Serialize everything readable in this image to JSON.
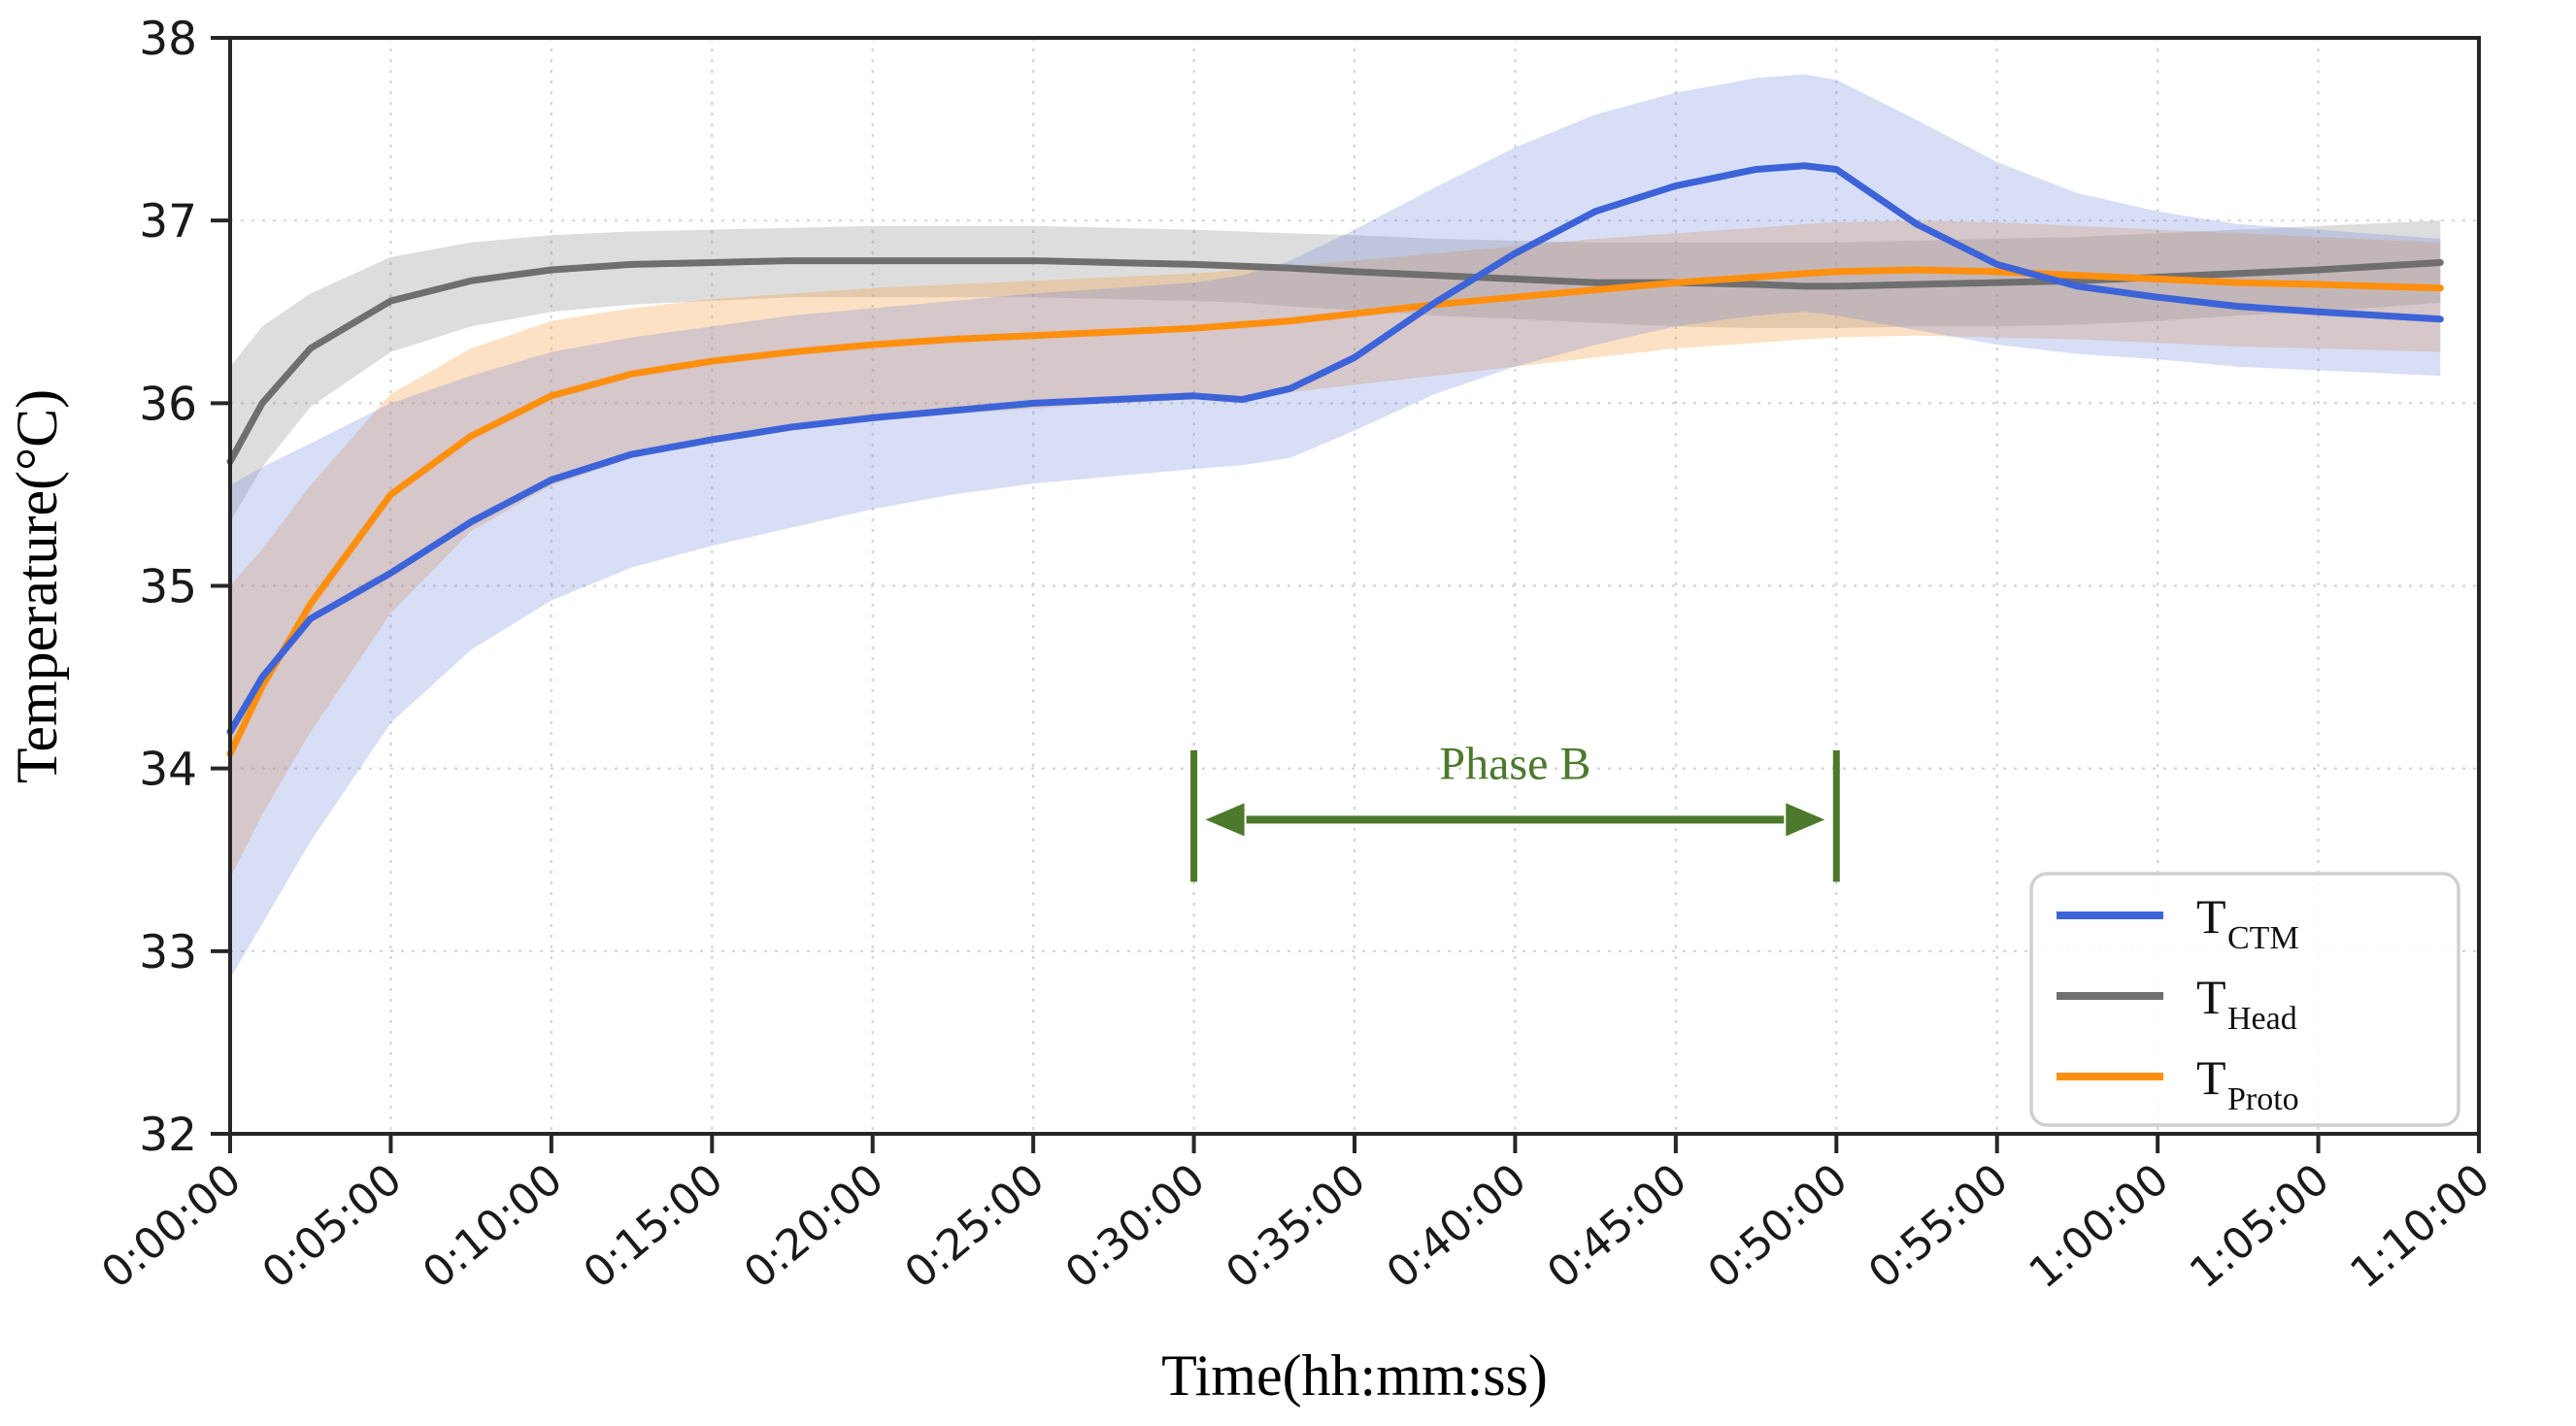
{
  "chart_data": {
    "type": "line",
    "xlabel": "Time(hh:mm:ss)",
    "ylabel": "Temperature(°C)",
    "ylim": [
      32,
      38
    ],
    "yticks": [
      38,
      37,
      36,
      35,
      34,
      33,
      32
    ],
    "x_axis_minutes_range": [
      0,
      70
    ],
    "xtick_minutes": [
      0,
      5,
      10,
      15,
      20,
      25,
      30,
      35,
      40,
      45,
      50,
      55,
      60,
      65,
      70
    ],
    "xtick_labels": [
      "0:00:00",
      "0:05:00",
      "0:10:00",
      "0:15:00",
      "0:20:00",
      "0:25:00",
      "0:30:00",
      "0:35:00",
      "0:40:00",
      "0:45:00",
      "0:50:00",
      "0:55:00",
      "1:00:00",
      "1:05:00",
      "1:10:00"
    ],
    "grid": "dotted",
    "legend_position": "lower right",
    "x_minutes": [
      0,
      1,
      2.5,
      5,
      7.5,
      10,
      12.5,
      15,
      17.5,
      20,
      22.5,
      25,
      27.5,
      30,
      31.5,
      33,
      35,
      37.5,
      40,
      42.5,
      45,
      47.5,
      49,
      50,
      52.5,
      55,
      57.5,
      60,
      62.5,
      65,
      68.8
    ],
    "series": [
      {
        "name": "T_Head",
        "legend_main": "T",
        "legend_sub": "Head",
        "color": "#6f6f6f",
        "band_color": "rgba(130,130,130,0.27)",
        "values": [
          35.68,
          36.0,
          36.3,
          36.56,
          36.67,
          36.73,
          36.76,
          36.77,
          36.78,
          36.78,
          36.78,
          36.78,
          36.77,
          36.76,
          36.75,
          36.74,
          36.72,
          36.7,
          36.68,
          36.66,
          36.66,
          36.65,
          36.64,
          36.64,
          36.65,
          36.66,
          36.67,
          36.69,
          36.71,
          36.73,
          36.77
        ],
        "band_lower": [
          35.35,
          35.65,
          35.98,
          36.28,
          36.42,
          36.5,
          36.54,
          36.56,
          36.58,
          36.58,
          36.58,
          36.58,
          36.57,
          36.56,
          36.55,
          36.53,
          36.51,
          36.48,
          36.46,
          36.44,
          36.42,
          36.41,
          36.41,
          36.41,
          36.42,
          36.42,
          36.43,
          36.45,
          36.48,
          36.5,
          36.55
        ],
        "band_upper": [
          36.2,
          36.42,
          36.6,
          36.8,
          36.88,
          36.92,
          36.94,
          36.95,
          36.96,
          36.97,
          36.97,
          36.97,
          36.96,
          36.95,
          36.94,
          36.93,
          36.92,
          36.9,
          36.89,
          36.88,
          36.88,
          36.88,
          36.88,
          36.88,
          36.89,
          36.9,
          36.91,
          36.93,
          36.95,
          36.97,
          37.0
        ]
      },
      {
        "name": "T_Proto",
        "legend_main": "T",
        "legend_sub": "Proto",
        "color": "#ff8f0e",
        "band_color": "rgba(244,156,60,0.30)",
        "values": [
          34.08,
          34.45,
          34.9,
          35.5,
          35.82,
          36.04,
          36.16,
          36.23,
          36.28,
          36.32,
          36.35,
          36.37,
          36.39,
          36.41,
          36.43,
          36.45,
          36.49,
          36.54,
          36.58,
          36.62,
          36.66,
          36.69,
          36.71,
          36.72,
          36.73,
          36.72,
          36.7,
          36.68,
          36.66,
          36.65,
          36.63
        ],
        "band_lower": [
          33.4,
          33.75,
          34.2,
          34.85,
          35.3,
          35.55,
          35.7,
          35.78,
          35.85,
          35.9,
          35.94,
          35.97,
          36.0,
          36.02,
          36.04,
          36.06,
          36.1,
          36.15,
          36.2,
          36.25,
          36.3,
          36.33,
          36.35,
          36.36,
          36.37,
          36.36,
          36.35,
          36.33,
          36.31,
          36.3,
          36.28
        ],
        "band_upper": [
          35.0,
          35.2,
          35.55,
          36.05,
          36.3,
          36.45,
          36.52,
          36.57,
          36.6,
          36.63,
          36.65,
          36.67,
          36.69,
          36.71,
          36.73,
          36.75,
          36.78,
          36.82,
          36.86,
          36.9,
          36.93,
          36.96,
          36.98,
          36.99,
          37.0,
          36.99,
          36.97,
          36.95,
          36.93,
          36.91,
          36.88
        ]
      },
      {
        "name": "T_CTM",
        "legend_main": "T",
        "legend_sub": "CTM",
        "color": "#3d63d8",
        "band_color": "rgba(99,128,219,0.26)",
        "values": [
          34.2,
          34.5,
          34.82,
          35.07,
          35.35,
          35.58,
          35.72,
          35.8,
          35.87,
          35.92,
          35.96,
          36.0,
          36.02,
          36.04,
          36.02,
          36.08,
          36.25,
          36.55,
          36.82,
          37.05,
          37.19,
          37.28,
          37.3,
          37.28,
          36.98,
          36.76,
          36.64,
          36.58,
          36.53,
          36.5,
          36.46
        ],
        "band_lower": [
          32.85,
          33.15,
          33.6,
          34.25,
          34.65,
          34.92,
          35.1,
          35.22,
          35.32,
          35.42,
          35.5,
          35.56,
          35.6,
          35.64,
          35.66,
          35.7,
          35.85,
          36.05,
          36.2,
          36.32,
          36.42,
          36.48,
          36.5,
          36.48,
          36.4,
          36.32,
          36.27,
          36.24,
          36.2,
          36.18,
          36.15
        ],
        "band_upper": [
          35.55,
          35.65,
          35.78,
          36.0,
          36.15,
          36.28,
          36.36,
          36.42,
          36.48,
          36.52,
          36.56,
          36.6,
          36.63,
          36.66,
          36.7,
          36.78,
          36.95,
          37.18,
          37.4,
          37.58,
          37.7,
          37.78,
          37.8,
          37.77,
          37.55,
          37.32,
          37.15,
          37.05,
          36.98,
          36.95,
          36.9
        ]
      }
    ],
    "annotation": {
      "label": "Phase B",
      "start_min": 30,
      "end_min": 50,
      "arrow_y": 33.72,
      "bar_top_y": 34.1,
      "bar_bottom_y": 33.38,
      "color": "#4c792c"
    }
  },
  "legend": {
    "items": [
      {
        "main": "T",
        "sub": "CTM"
      },
      {
        "main": "T",
        "sub": "Head"
      },
      {
        "main": "T",
        "sub": "Proto"
      }
    ]
  },
  "colors": {
    "ctm_blue": "#3d63d8",
    "head_gray": "#6f6f6f",
    "proto_orange": "#ff8f0e",
    "phase_green": "#4c792c",
    "spine": "#262626",
    "grid": "#d4d4d4"
  }
}
